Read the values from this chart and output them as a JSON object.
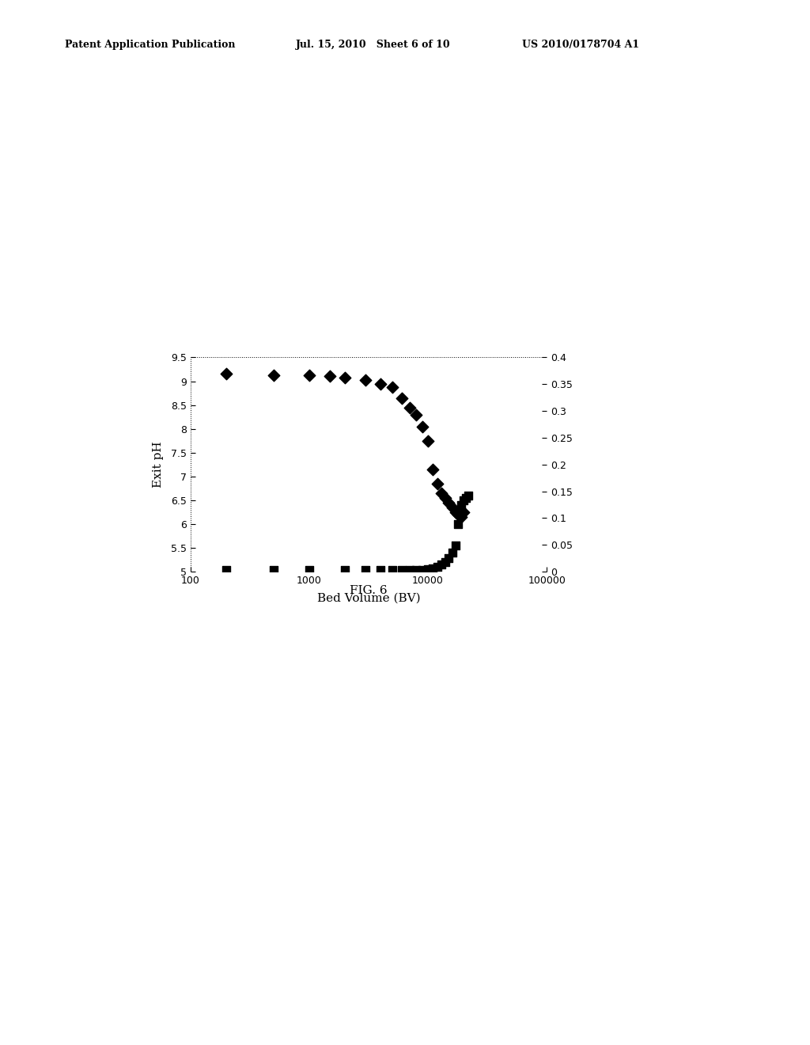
{
  "title_left": "Patent Application Publication",
  "title_center": "Jul. 15, 2010   Sheet 6 of 10",
  "title_right": "US 2010/0178704 A1",
  "fig_caption": "FIG. 6",
  "xlabel": "Bed Volume (BV)",
  "ylabel_left": "Exit pH",
  "xlim": [
    100,
    100000
  ],
  "ylim_left": [
    5.0,
    9.5
  ],
  "ylim_right": [
    0.0,
    0.4
  ],
  "yticks_left": [
    5,
    5.5,
    6,
    6.5,
    7,
    7.5,
    8,
    8.5,
    9,
    9.5
  ],
  "ytick_labels_left": [
    "5",
    "5.5",
    "6",
    "6.5",
    "7",
    "7.5",
    "8",
    "8.5",
    "9",
    "9.5"
  ],
  "yticks_right": [
    0,
    0.05,
    0.1,
    0.15,
    0.2,
    0.25,
    0.3,
    0.35,
    0.4
  ],
  "ytick_labels_right": [
    "0",
    "0.05",
    "0.1",
    "0.15",
    "0.2",
    "0.25",
    "0.3",
    "0.35",
    "0.4"
  ],
  "xtick_vals": [
    100,
    1000,
    10000,
    100000
  ],
  "xtick_labels": [
    "100",
    "1000",
    "10000",
    "100000"
  ],
  "diamond_x": [
    200,
    500,
    1000,
    1500,
    2000,
    3000,
    4000,
    5000,
    6000,
    7000,
    8000,
    9000,
    10000,
    11000,
    12000,
    13000,
    14000,
    15000,
    16000,
    17000,
    18000,
    19000,
    20000
  ],
  "diamond_y": [
    9.15,
    9.13,
    9.12,
    9.1,
    9.07,
    9.02,
    8.95,
    8.88,
    8.65,
    8.45,
    8.3,
    8.05,
    7.75,
    7.15,
    6.85,
    6.65,
    6.55,
    6.45,
    6.35,
    6.25,
    6.2,
    6.15,
    6.25
  ],
  "square_x": [
    200,
    500,
    1000,
    2000,
    3000,
    4000,
    5000,
    6000,
    7000,
    8000,
    9000,
    10000,
    11000,
    12000,
    13000,
    14000,
    15000,
    16000,
    17000,
    18000,
    19000,
    20000,
    21000,
    22000
  ],
  "square_y": [
    5.03,
    5.03,
    5.03,
    5.03,
    5.03,
    5.03,
    5.03,
    5.03,
    5.03,
    5.03,
    5.03,
    5.05,
    5.07,
    5.1,
    5.15,
    5.2,
    5.28,
    5.4,
    5.55,
    6.0,
    6.4,
    6.5,
    6.55,
    6.6
  ],
  "marker_color": "#000000",
  "background_color": "#ffffff",
  "plot_bg": "#ffffff"
}
